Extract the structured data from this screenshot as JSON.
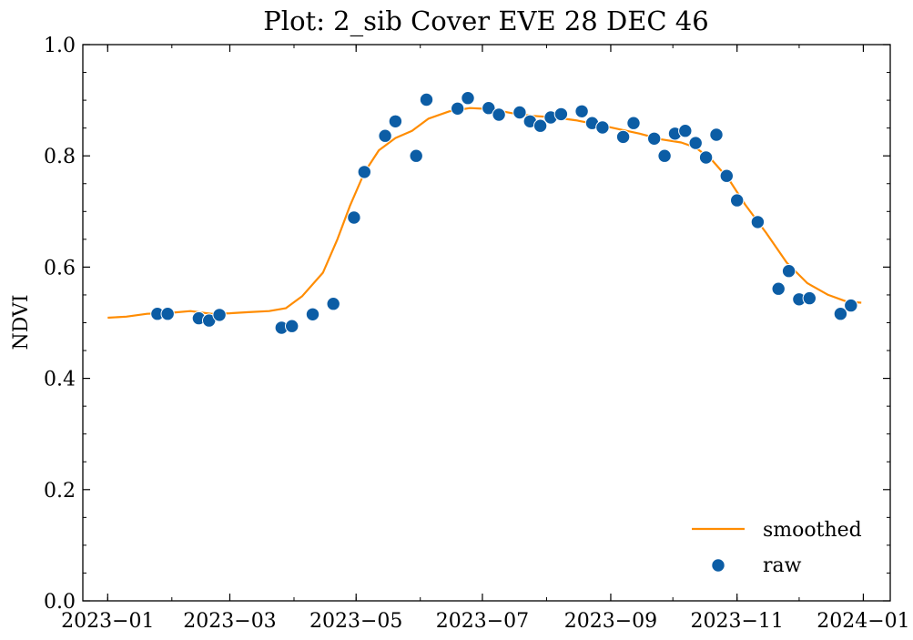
{
  "chart_data": {
    "type": "line",
    "title": "Plot: 2_sib Cover EVE 28 DEC 46",
    "xlabel": "",
    "ylabel": "NDVI",
    "ylim": [
      0.0,
      1.0
    ],
    "xlim": [
      "2022-12-20",
      "2024-01-14"
    ],
    "x_ticks": [
      "2023−01",
      "2023−03",
      "2023−05",
      "2023−07",
      "2023−09",
      "2023−11",
      "2024−01"
    ],
    "x_tick_dates": [
      "2023-01-01",
      "2023-03-01",
      "2023-05-01",
      "2023-07-01",
      "2023-09-01",
      "2023-11-01",
      "2024-01-01"
    ],
    "y_ticks": [
      "0.0",
      "0.2",
      "0.4",
      "0.6",
      "0.8",
      "1.0"
    ],
    "y_tick_values": [
      0.0,
      0.2,
      0.4,
      0.6,
      0.8,
      1.0
    ],
    "grid": false,
    "legend_position": "bottom-right",
    "colors": {
      "smoothed": "#ff8c00",
      "raw": "#0c5da5"
    },
    "series": [
      {
        "name": "smoothed",
        "kind": "line",
        "points": [
          [
            "2023-01-01",
            0.509
          ],
          [
            "2023-01-10",
            0.511
          ],
          [
            "2023-01-20",
            0.516
          ],
          [
            "2023-02-01",
            0.518
          ],
          [
            "2023-02-10",
            0.521
          ],
          [
            "2023-02-20",
            0.516
          ],
          [
            "2023-03-01",
            0.517
          ],
          [
            "2023-03-10",
            0.519
          ],
          [
            "2023-03-20",
            0.521
          ],
          [
            "2023-03-28",
            0.526
          ],
          [
            "2023-04-05",
            0.548
          ],
          [
            "2023-04-15",
            0.59
          ],
          [
            "2023-04-22",
            0.65
          ],
          [
            "2023-04-28",
            0.71
          ],
          [
            "2023-05-05",
            0.77
          ],
          [
            "2023-05-12",
            0.81
          ],
          [
            "2023-05-20",
            0.832
          ],
          [
            "2023-05-28",
            0.845
          ],
          [
            "2023-06-05",
            0.867
          ],
          [
            "2023-06-15",
            0.88
          ],
          [
            "2023-06-25",
            0.886
          ],
          [
            "2023-07-05",
            0.884
          ],
          [
            "2023-07-15",
            0.877
          ],
          [
            "2023-07-25",
            0.872
          ],
          [
            "2023-08-05",
            0.869
          ],
          [
            "2023-08-15",
            0.864
          ],
          [
            "2023-08-25",
            0.857
          ],
          [
            "2023-09-05",
            0.848
          ],
          [
            "2023-09-15",
            0.84
          ],
          [
            "2023-09-25",
            0.83
          ],
          [
            "2023-10-05",
            0.824
          ],
          [
            "2023-10-12",
            0.815
          ],
          [
            "2023-10-20",
            0.792
          ],
          [
            "2023-10-28",
            0.758
          ],
          [
            "2023-11-05",
            0.712
          ],
          [
            "2023-11-15",
            0.662
          ],
          [
            "2023-11-25",
            0.608
          ],
          [
            "2023-12-05",
            0.571
          ],
          [
            "2023-12-15",
            0.55
          ],
          [
            "2023-12-24",
            0.538
          ],
          [
            "2023-12-31",
            0.536
          ]
        ]
      },
      {
        "name": "raw",
        "kind": "scatter",
        "points": [
          [
            "2023-01-25",
            0.516
          ],
          [
            "2023-01-30",
            0.516
          ],
          [
            "2023-02-14",
            0.508
          ],
          [
            "2023-02-19",
            0.504
          ],
          [
            "2023-02-24",
            0.514
          ],
          [
            "2023-03-26",
            0.491
          ],
          [
            "2023-03-31",
            0.494
          ],
          [
            "2023-04-10",
            0.515
          ],
          [
            "2023-04-20",
            0.534
          ],
          [
            "2023-04-30",
            0.689
          ],
          [
            "2023-05-05",
            0.771
          ],
          [
            "2023-05-15",
            0.836
          ],
          [
            "2023-05-20",
            0.862
          ],
          [
            "2023-05-30",
            0.8
          ],
          [
            "2023-06-04",
            0.901
          ],
          [
            "2023-06-19",
            0.885
          ],
          [
            "2023-06-24",
            0.904
          ],
          [
            "2023-07-04",
            0.886
          ],
          [
            "2023-07-09",
            0.874
          ],
          [
            "2023-07-19",
            0.878
          ],
          [
            "2023-07-24",
            0.862
          ],
          [
            "2023-07-29",
            0.854
          ],
          [
            "2023-08-03",
            0.869
          ],
          [
            "2023-08-08",
            0.875
          ],
          [
            "2023-08-18",
            0.88
          ],
          [
            "2023-08-23",
            0.859
          ],
          [
            "2023-08-28",
            0.851
          ],
          [
            "2023-09-07",
            0.834
          ],
          [
            "2023-09-12",
            0.859
          ],
          [
            "2023-09-22",
            0.831
          ],
          [
            "2023-09-27",
            0.8
          ],
          [
            "2023-10-02",
            0.84
          ],
          [
            "2023-10-07",
            0.845
          ],
          [
            "2023-10-12",
            0.823
          ],
          [
            "2023-10-17",
            0.797
          ],
          [
            "2023-10-22",
            0.838
          ],
          [
            "2023-10-27",
            0.764
          ],
          [
            "2023-11-01",
            0.72
          ],
          [
            "2023-11-11",
            0.681
          ],
          [
            "2023-11-21",
            0.561
          ],
          [
            "2023-11-26",
            0.593
          ],
          [
            "2023-12-01",
            0.542
          ],
          [
            "2023-12-06",
            0.544
          ],
          [
            "2023-12-21",
            0.516
          ],
          [
            "2023-12-26",
            0.531
          ]
        ]
      }
    ]
  }
}
